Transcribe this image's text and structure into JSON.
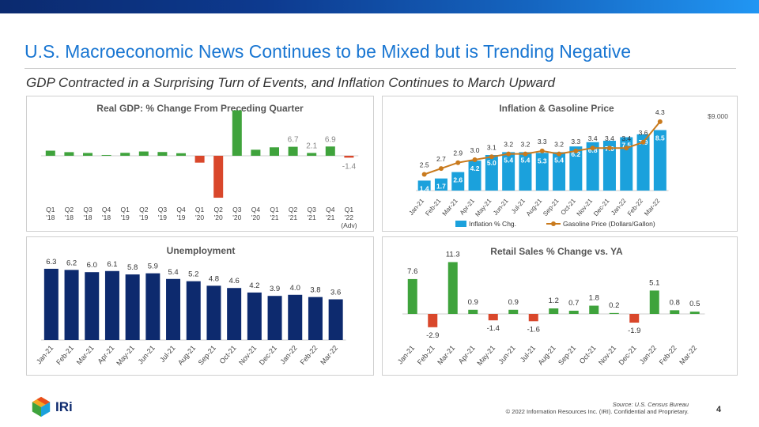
{
  "header": {
    "title": "U.S. Macroeconomic News Continues to be Mixed but is Trending Negative",
    "subtitle": "GDP Contracted in a Surprising Turn of Events, and Inflation Continues to March Upward"
  },
  "footer": {
    "brand": "IRi",
    "source": "Source: U.S. Census Bureau",
    "copyright": "© 2022 Information Resources Inc. (IRI). Confidential and Proprietary.",
    "page_number": "4"
  },
  "colors": {
    "green": "#3fa33c",
    "red": "#d9472b",
    "blue": "#1ba1dc",
    "navy": "#0d2a6e",
    "orange": "#c97a1d",
    "accent": "#1976d2"
  },
  "chart_data": [
    {
      "type": "bar",
      "title": "Real GDP: % Change From Preceding Quarter",
      "categories": [
        "Q1\n'18",
        "Q2\n'18",
        "Q3\n'18",
        "Q4\n'18",
        "Q1\n'19",
        "Q2\n'19",
        "Q3\n'19",
        "Q4\n'19",
        "Q1\n'20",
        "Q2\n'20",
        "Q3\n'20",
        "Q4\n'20",
        "Q1\n'21",
        "Q2\n'21",
        "Q3\n'21",
        "Q4\n'21",
        "Q1\n'22\n(Adv)"
      ],
      "values": [
        3.8,
        2.7,
        2.1,
        0.6,
        2.2,
        3.2,
        2.8,
        1.9,
        -5.1,
        -31.2,
        33.8,
        4.5,
        6.3,
        6.7,
        2.1,
        6.9,
        -1.4
      ],
      "data_labels": [
        "",
        "",
        "",
        "",
        "",
        "",
        "",
        "",
        "",
        "",
        "",
        "",
        "",
        "6.7",
        "2.1",
        "6.9",
        "-1.4"
      ],
      "ylim": [
        -35,
        36
      ]
    },
    {
      "type": "bar+line",
      "title": "Inflation & Gasoline Price",
      "categories": [
        "Jan-21",
        "Feb-21",
        "Mar-21",
        "Apr-21",
        "May-21",
        "Jun-21",
        "Jul-21",
        "Aug-21",
        "Sep-21",
        "Oct-21",
        "Nov-21",
        "Dec-21",
        "Jan-22",
        "Feb-22",
        "Mar-22"
      ],
      "series": [
        {
          "name": "Inflation % Chg.",
          "kind": "bar",
          "values": [
            1.4,
            1.7,
            2.6,
            4.2,
            5.0,
            5.4,
            5.4,
            5.3,
            5.4,
            6.2,
            6.8,
            7.0,
            7.5,
            7.9,
            8.5
          ]
        },
        {
          "name": "Gasoline Price (Dollars/Gallon)",
          "kind": "line",
          "values": [
            2.5,
            2.7,
            2.9,
            3.0,
            3.1,
            3.2,
            3.2,
            3.3,
            3.2,
            3.3,
            3.4,
            3.4,
            3.4,
            3.6,
            4.3
          ]
        }
      ],
      "y2_tick": "$9.000",
      "bar_ylim": [
        0,
        10
      ],
      "line_ylim": [
        0,
        5
      ]
    },
    {
      "type": "bar",
      "title": "Unemployment",
      "categories": [
        "Jan-21",
        "Feb-21",
        "Mar-21",
        "Apr-21",
        "May-21",
        "Jun-21",
        "Jul-21",
        "Aug-21",
        "Sep-21",
        "Oct-21",
        "Nov-21",
        "Dec-21",
        "Jan-22",
        "Feb-22",
        "Mar-22"
      ],
      "values": [
        6.3,
        6.2,
        6.0,
        6.1,
        5.8,
        5.9,
        5.4,
        5.2,
        4.8,
        4.6,
        4.2,
        3.9,
        4.0,
        3.8,
        3.6
      ],
      "ylim": [
        0,
        6.5
      ]
    },
    {
      "type": "bar",
      "title": "Retail Sales % Change vs. YA",
      "categories": [
        "Jan-21",
        "Feb-21",
        "Mar-21",
        "Apr-21",
        "May-21",
        "Jun-21",
        "Jul-21",
        "Aug-21",
        "Sep-21",
        "Oct-21",
        "Nov-21",
        "Dec-21",
        "Jan-22",
        "Feb-22",
        "Mar-22"
      ],
      "values": [
        7.6,
        -2.9,
        11.3,
        0.9,
        -1.4,
        0.9,
        -1.6,
        1.2,
        0.7,
        1.8,
        0.2,
        -1.9,
        5.1,
        0.8,
        0.5
      ],
      "ylim": [
        -3,
        12
      ]
    }
  ]
}
